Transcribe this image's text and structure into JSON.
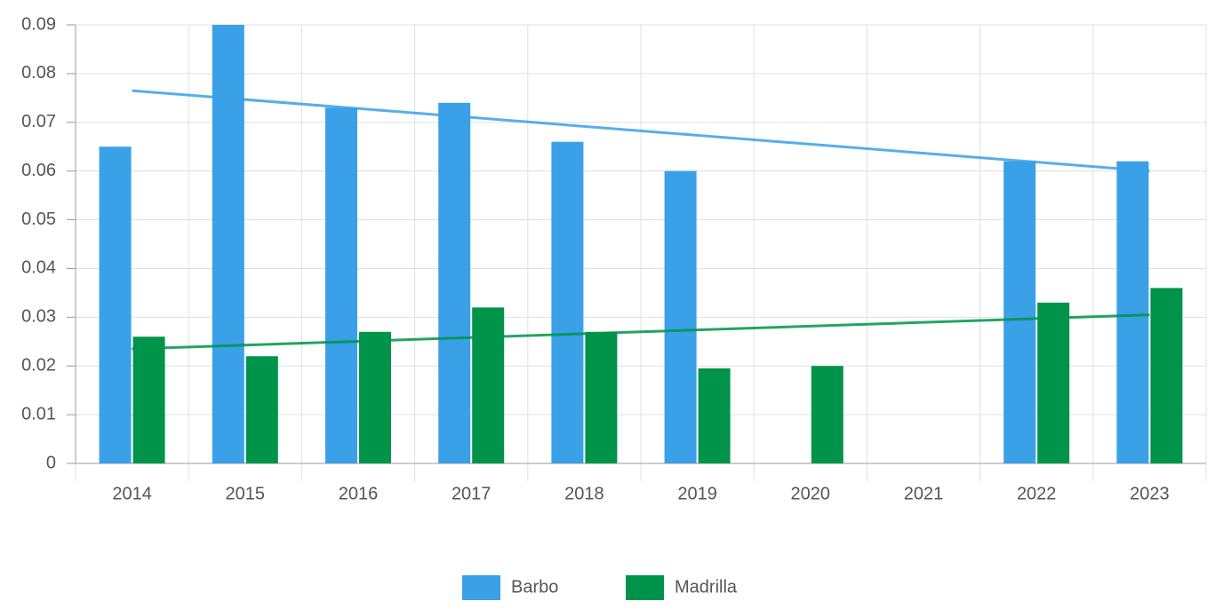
{
  "chart_data": {
    "type": "bar",
    "categories": [
      "2014",
      "2015",
      "2016",
      "2017",
      "2018",
      "2019",
      "2020",
      "2021",
      "2022",
      "2023"
    ],
    "series": [
      {
        "name": "Barbo",
        "color": "#3aa0e8",
        "values": [
          0.065,
          0.09,
          0.073,
          0.074,
          0.066,
          0.06,
          null,
          null,
          0.062,
          0.062
        ],
        "trend": [
          0.0765,
          0.06
        ]
      },
      {
        "name": "Madrilla",
        "color": "#00944a",
        "values": [
          0.026,
          0.022,
          0.027,
          0.032,
          0.027,
          0.0195,
          0.02,
          null,
          0.033,
          0.036
        ],
        "trend": [
          0.0235,
          0.0305
        ]
      }
    ],
    "ylim": [
      0,
      0.09
    ],
    "yticks": [
      0,
      0.01,
      0.02,
      0.03,
      0.04,
      0.05,
      0.06,
      0.07,
      0.08,
      0.09
    ],
    "grid": true,
    "legend": "bottom"
  }
}
